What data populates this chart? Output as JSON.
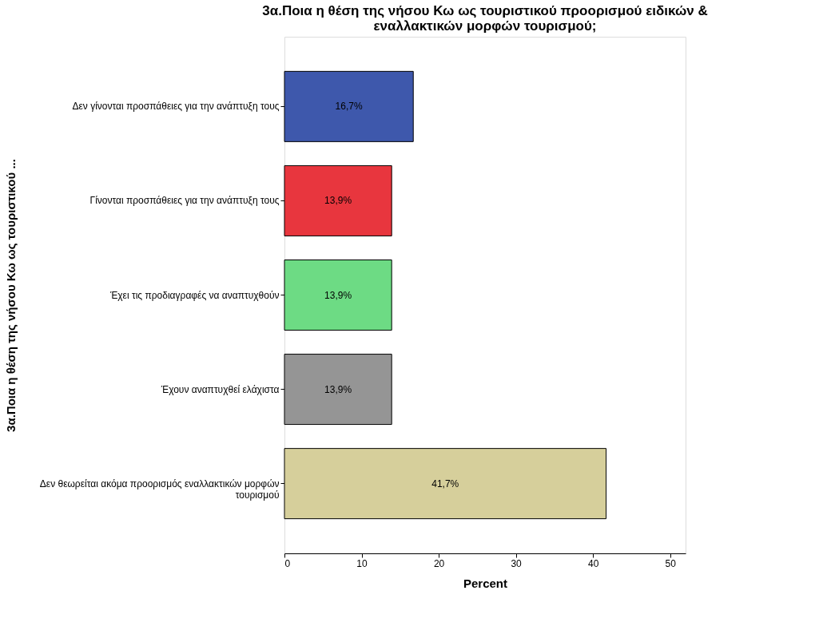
{
  "chart_data": {
    "type": "bar",
    "orientation": "horizontal",
    "title": [
      "3α.Ποια η θέση της νήσου Κω ως τουριστικού προορισμού ειδικών &",
      "εναλλακτικών μορφών τουρισμού;"
    ],
    "xlabel": "Percent",
    "ylabel": "3α.Ποια η θέση της νήσου Κω ως τουριστικού  ...",
    "categories": [
      "Δεν γίνονται προσπάθειες για την ανάπτυξη τους",
      "Γίνονται προσπάθειες για την ανάπτυξη τους",
      "Έχει τις προδιαγραφές να αναπτυχθούν",
      "Έχουν αναπτυχθεί ελάχιστα",
      "Δεν θεωρείται ακόμα προορισμός εναλλακτικών μορφών τουρισμού"
    ],
    "values": [
      16.7,
      13.9,
      13.9,
      13.9,
      41.7
    ],
    "colors": [
      "#3e58ac",
      "#e8363e",
      "#6ddb84",
      "#959595",
      "#d6cf9b"
    ],
    "value_labels": [
      "16,7%",
      "13,9%",
      "13,9%",
      "13,9%",
      "41,7%"
    ],
    "xlim": [
      0,
      52
    ],
    "xticks": [
      0,
      10,
      20,
      30,
      40,
      50
    ],
    "grid": false
  }
}
